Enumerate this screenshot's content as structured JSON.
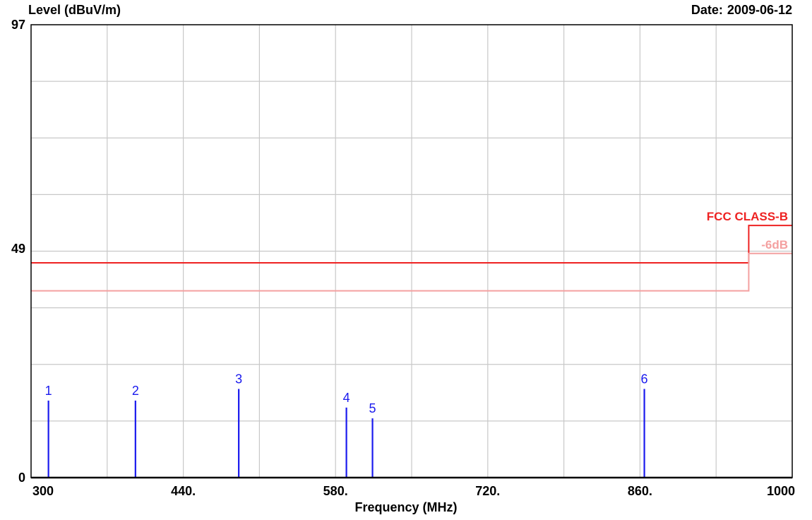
{
  "header": {
    "date_label": "Date:",
    "date_value": "2009-06-12"
  },
  "chart_data": {
    "type": "line",
    "ylabel": "Level (dBuV/m)",
    "xlabel": "Frequency (MHz)",
    "xlim": [
      300,
      1000
    ],
    "ylim": [
      0,
      97
    ],
    "x_ticks": [
      300,
      440,
      580,
      720,
      860,
      1000
    ],
    "x_tick_labels": [
      "300",
      "440.",
      "580.",
      "720.",
      "860.",
      "1000"
    ],
    "y_tick_labels": [
      {
        "value": 0,
        "label": "0"
      },
      {
        "value": 49,
        "label": "49"
      },
      {
        "value": 97,
        "label": "97"
      }
    ],
    "grid": true,
    "x_grid_step": 70,
    "y_grid_divisions": 8,
    "series": [
      {
        "name": "FCC CLASS-B",
        "color": "#ee2222",
        "points": [
          [
            300,
            46
          ],
          [
            960,
            46
          ],
          [
            960,
            54
          ],
          [
            1000,
            54
          ]
        ]
      },
      {
        "name": "-6dB",
        "color": "#f4a0a0",
        "points": [
          [
            300,
            40
          ],
          [
            960,
            40
          ],
          [
            960,
            48
          ],
          [
            1000,
            48
          ]
        ]
      }
    ],
    "markers": {
      "color": "#1a1aee",
      "items": [
        {
          "label": "1",
          "x": 316,
          "y": 16.5
        },
        {
          "label": "2",
          "x": 396,
          "y": 16.5
        },
        {
          "label": "3",
          "x": 491,
          "y": 19
        },
        {
          "label": "4",
          "x": 590,
          "y": 15
        },
        {
          "label": "5",
          "x": 614,
          "y": 12.7
        },
        {
          "label": "6",
          "x": 864,
          "y": 19
        }
      ]
    }
  }
}
